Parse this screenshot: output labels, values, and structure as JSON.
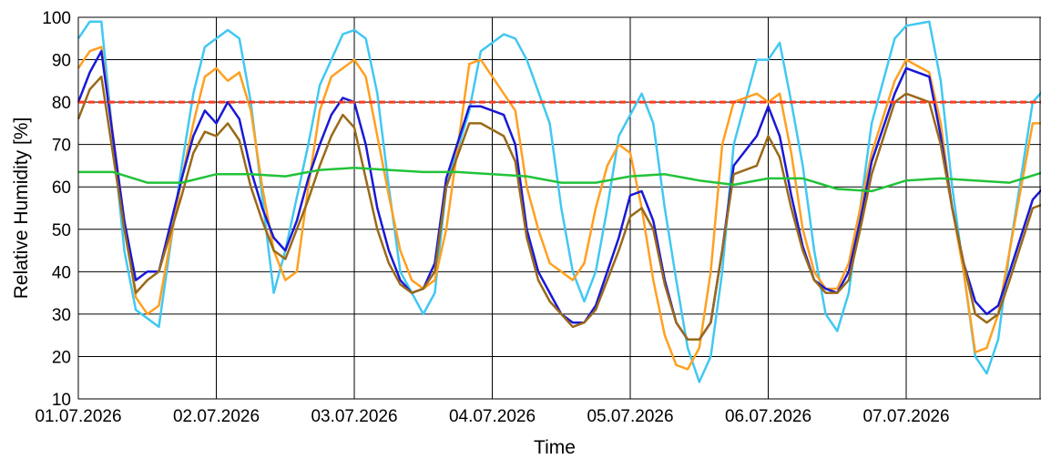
{
  "chart_data": {
    "type": "line",
    "xlabel": "Time",
    "ylabel": "Relative Humidity [%]",
    "ylim": [
      10,
      100
    ],
    "yticks": [
      10,
      20,
      30,
      40,
      50,
      60,
      70,
      80,
      90,
      100
    ],
    "xlim": [
      "01.07.2026 00:00",
      "07.07.2026 23:00"
    ],
    "xticks": [
      "01.07.2026",
      "02.07.2026",
      "03.07.2026",
      "04.07.2026",
      "05.07.2026",
      "06.07.2026",
      "07.07.2026"
    ],
    "grid": true,
    "threshold": {
      "value": 80,
      "color": "#ff3b1f",
      "style": "dashed"
    },
    "series": [
      {
        "color": "#41c8f2",
        "x_hours": [
          0,
          2,
          4,
          8,
          10,
          14,
          18,
          20,
          22,
          24,
          26,
          28,
          30,
          34,
          36,
          40,
          42,
          44,
          46,
          48,
          50,
          52,
          54,
          56,
          60,
          62,
          64,
          68,
          70,
          74,
          76,
          78,
          82,
          84,
          86,
          88,
          90,
          92,
          94,
          98,
          100,
          102,
          104,
          106,
          108,
          110,
          112,
          114,
          118,
          120,
          122,
          124,
          126,
          128,
          130,
          132,
          134,
          136,
          138,
          142,
          144,
          148,
          150,
          152,
          154,
          156,
          158,
          160,
          162,
          166,
          168
        ],
        "values": [
          95,
          99,
          99,
          45,
          31,
          27,
          65,
          82,
          93,
          95,
          97,
          95,
          80,
          35,
          45,
          70,
          84,
          90,
          96,
          97,
          95,
          82,
          60,
          40,
          30,
          35,
          60,
          78,
          92,
          96,
          95,
          90,
          75,
          55,
          40,
          33,
          40,
          55,
          72,
          82,
          75,
          55,
          38,
          22,
          14,
          20,
          40,
          70,
          90,
          90,
          94,
          80,
          65,
          45,
          30,
          26,
          35,
          55,
          75,
          95,
          98,
          99,
          85,
          60,
          40,
          20,
          16,
          24,
          45,
          80,
          83
        ]
      },
      {
        "color": "#ffa020",
        "x_hours": [
          0,
          2,
          4,
          8,
          10,
          12,
          14,
          18,
          20,
          22,
          24,
          26,
          28,
          30,
          32,
          34,
          36,
          38,
          40,
          42,
          44,
          46,
          48,
          50,
          52,
          54,
          56,
          58,
          60,
          62,
          64,
          68,
          70,
          74,
          76,
          78,
          80,
          82,
          84,
          86,
          88,
          90,
          92,
          94,
          96,
          98,
          100,
          102,
          104,
          106,
          108,
          110,
          112,
          114,
          118,
          120,
          122,
          124,
          126,
          128,
          130,
          132,
          134,
          136,
          138,
          142,
          144,
          148,
          150,
          152,
          154,
          156,
          158,
          160,
          162,
          166,
          168
        ],
        "values": [
          88,
          92,
          93,
          52,
          34,
          30,
          32,
          62,
          75,
          86,
          88,
          85,
          87,
          78,
          60,
          45,
          38,
          40,
          60,
          78,
          86,
          88,
          90,
          86,
          72,
          58,
          45,
          38,
          36,
          38,
          50,
          89,
          90,
          82,
          78,
          60,
          50,
          42,
          40,
          38,
          42,
          55,
          65,
          70,
          68,
          55,
          38,
          25,
          18,
          17,
          22,
          40,
          70,
          80,
          82,
          80,
          82,
          68,
          50,
          40,
          36,
          36,
          42,
          55,
          68,
          85,
          90,
          87,
          75,
          55,
          40,
          21,
          22,
          30,
          45,
          75,
          75
        ]
      },
      {
        "color": "#1a18d6",
        "x_hours": [
          0,
          2,
          4,
          8,
          10,
          12,
          14,
          18,
          20,
          22,
          24,
          26,
          28,
          30,
          32,
          34,
          36,
          38,
          40,
          42,
          44,
          46,
          48,
          50,
          52,
          54,
          56,
          58,
          60,
          62,
          64,
          68,
          70,
          74,
          76,
          78,
          80,
          82,
          84,
          86,
          88,
          90,
          92,
          94,
          96,
          98,
          100,
          102,
          104,
          106,
          108,
          110,
          112,
          114,
          118,
          120,
          122,
          124,
          126,
          128,
          130,
          132,
          134,
          136,
          138,
          142,
          144,
          148,
          150,
          152,
          154,
          156,
          158,
          160,
          162,
          166,
          168
        ],
        "values": [
          80,
          87,
          92,
          52,
          38,
          40,
          40,
          62,
          72,
          78,
          75,
          80,
          76,
          64,
          55,
          48,
          45,
          52,
          62,
          70,
          77,
          81,
          80,
          70,
          55,
          45,
          38,
          35,
          36,
          42,
          62,
          79,
          79,
          77,
          70,
          50,
          40,
          35,
          30,
          28,
          28,
          32,
          40,
          48,
          58,
          59,
          52,
          38,
          28,
          24,
          24,
          28,
          45,
          65,
          72,
          79,
          72,
          58,
          46,
          38,
          36,
          35,
          40,
          52,
          66,
          82,
          88,
          86,
          72,
          55,
          42,
          33,
          30,
          32,
          40,
          57,
          60
        ]
      },
      {
        "color": "#9a6a18",
        "x_hours": [
          0,
          2,
          4,
          8,
          10,
          12,
          14,
          18,
          20,
          22,
          24,
          26,
          28,
          30,
          32,
          34,
          36,
          38,
          40,
          42,
          44,
          46,
          48,
          50,
          52,
          54,
          56,
          58,
          60,
          62,
          64,
          68,
          70,
          74,
          76,
          78,
          80,
          82,
          84,
          86,
          88,
          90,
          92,
          94,
          96,
          98,
          100,
          102,
          104,
          106,
          108,
          110,
          112,
          114,
          118,
          120,
          122,
          124,
          126,
          128,
          130,
          132,
          134,
          136,
          138,
          142,
          144,
          148,
          150,
          152,
          154,
          156,
          158,
          160,
          162,
          166,
          168
        ],
        "values": [
          76,
          83,
          86,
          50,
          35,
          38,
          40,
          58,
          68,
          73,
          72,
          75,
          71,
          60,
          52,
          45,
          43,
          50,
          57,
          65,
          72,
          77,
          74,
          62,
          50,
          42,
          37,
          35,
          36,
          40,
          60,
          75,
          75,
          72,
          66,
          48,
          38,
          33,
          30,
          27,
          28,
          31,
          38,
          45,
          53,
          55,
          50,
          37,
          28,
          24,
          24,
          28,
          45,
          63,
          65,
          72,
          67,
          55,
          45,
          38,
          35,
          35,
          38,
          50,
          63,
          80,
          82,
          80,
          70,
          55,
          42,
          30,
          28,
          30,
          38,
          55,
          56
        ]
      },
      {
        "color": "#22c23a",
        "x_hours": [
          0,
          6,
          12,
          18,
          24,
          30,
          36,
          42,
          48,
          54,
          60,
          66,
          72,
          78,
          84,
          90,
          96,
          102,
          108,
          114,
          120,
          126,
          132,
          138,
          144,
          150,
          156,
          162,
          168
        ],
        "values": [
          63.5,
          63.5,
          61,
          61,
          63,
          63,
          62.5,
          64,
          64.5,
          64,
          63.5,
          63.5,
          63,
          62.5,
          61,
          61,
          62.5,
          63,
          61.5,
          60.5,
          62,
          62,
          59.5,
          59,
          61.5,
          62,
          61.5,
          61,
          63.5
        ]
      }
    ]
  }
}
